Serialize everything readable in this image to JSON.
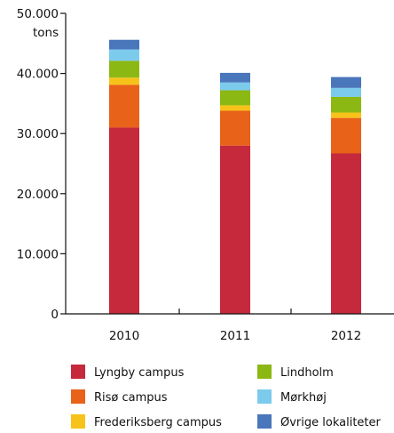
{
  "chart_data": {
    "type": "bar",
    "stacked": true,
    "title": "",
    "ylabel": "tons",
    "xlabel": "",
    "ylim": [
      0,
      50000
    ],
    "yticks": [
      0,
      10000,
      20000,
      30000,
      40000,
      50000
    ],
    "ytick_labels": [
      "0",
      "10.000",
      "20.000",
      "30.000",
      "40.000",
      "50.000"
    ],
    "categories": [
      "2010",
      "2011",
      "2012"
    ],
    "grid": false,
    "legend_position": "bottom",
    "series": [
      {
        "name": "Lyngby campus",
        "color": "#c6283c",
        "values": [
          31000,
          28000,
          26700
        ]
      },
      {
        "name": "Risø campus",
        "color": "#e8621a",
        "values": [
          7100,
          5800,
          5900
        ]
      },
      {
        "name": "Frederiksberg campus",
        "color": "#f7c31b",
        "values": [
          1200,
          900,
          900
        ]
      },
      {
        "name": "Lindholm",
        "color": "#8cb813",
        "values": [
          2800,
          2500,
          2600
        ]
      },
      {
        "name": "Mørkhøj",
        "color": "#7ccbed",
        "values": [
          1900,
          1300,
          1500
        ]
      },
      {
        "name": "Øvrige lokaliteter",
        "color": "#4a76bb",
        "values": [
          1600,
          1600,
          1800
        ]
      }
    ]
  }
}
